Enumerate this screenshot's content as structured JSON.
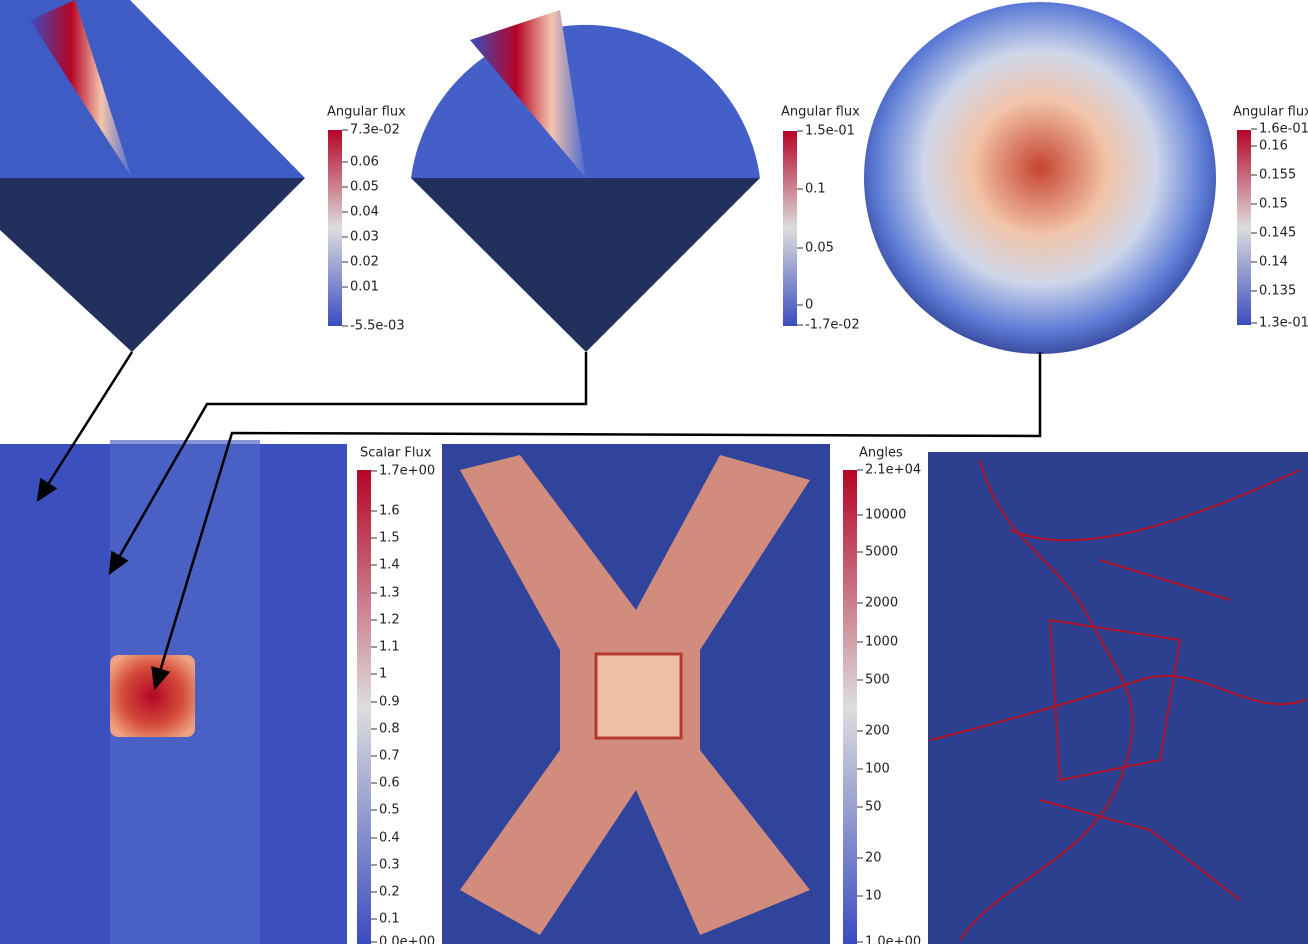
{
  "colorbars": [
    {
      "title": "Angular flux",
      "ticks": [
        "7.3e-02",
        "0.06",
        "0.05",
        "0.04",
        "0.03",
        "0.02",
        "0.01",
        "-5.5e-03"
      ]
    },
    {
      "title": "Angular flux",
      "ticks": [
        "1.5e-01",
        "0.1",
        "0.05",
        "0",
        "-1.7e-02"
      ]
    },
    {
      "title": "Angular flux",
      "ticks": [
        "1.6e-01",
        "0.16",
        "0.155",
        "0.15",
        "0.145",
        "0.14",
        "0.135",
        "1.3e-01"
      ]
    },
    {
      "title": "Scalar Flux",
      "ticks": [
        "1.7e+00",
        "1.6",
        "1.5",
        "1.4",
        "1.3",
        "1.2",
        "1.1",
        "1",
        "0.9",
        "0.8",
        "0.7",
        "0.6",
        "0.5",
        "0.4",
        "0.3",
        "0.2",
        "0.1",
        "0.0e+00"
      ]
    },
    {
      "title": "Angles",
      "ticks": [
        "2.1e+04",
        "10000",
        "5000",
        "2000",
        "1000",
        "500",
        "200",
        "100",
        "50",
        "20",
        "10",
        "1.0e+00"
      ]
    }
  ]
}
